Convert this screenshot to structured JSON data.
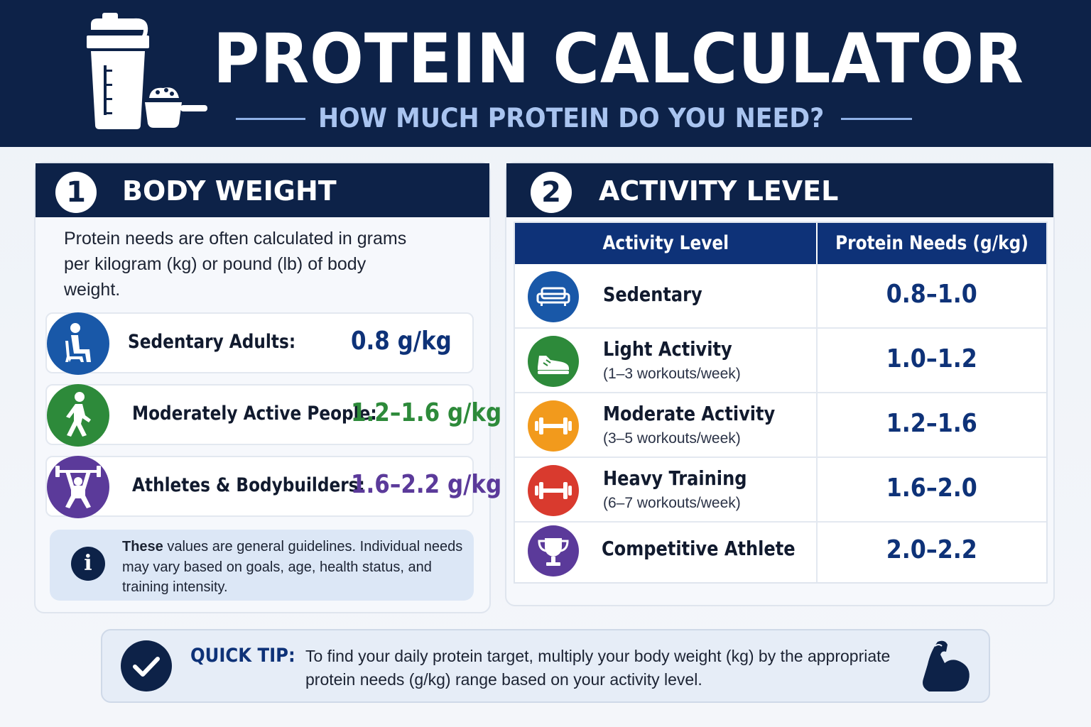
{
  "header": {
    "title": "PROTEIN CALCULATOR",
    "subtitle": "HOW MUCH PROTEIN DO YOU NEED?",
    "logo_icon": "protein-shaker-and-scoop-icon"
  },
  "body_weight": {
    "number": "1",
    "title": "BODY WEIGHT",
    "intro": "Protein needs are often calculated in grams per kilogram (kg) or pound (lb) of body weight.",
    "rows": [
      {
        "label": "Sedentary Adults:",
        "value": "0.8 g/kg",
        "icon": "sitting-person-icon",
        "color": "#1958a8",
        "value_color": "#0e3278"
      },
      {
        "label": "Moderately Active People:",
        "value": "1.2–1.6 g/kg",
        "icon": "walking-person-icon",
        "color": "#2d8a3a",
        "value_color": "#2d8a3a"
      },
      {
        "label": "Athletes & Bodybuilders:",
        "value": "1.6–2.2 g/kg",
        "icon": "weightlifter-icon",
        "color": "#5b3a9a",
        "value_color": "#5b3a9a"
      }
    ],
    "note_bold": "These",
    "note_text": " values are general guidelines. Individual needs may vary based on goals, age, health status, and training intensity."
  },
  "activity_level": {
    "number": "2",
    "title": "ACTIVITY LEVEL",
    "columns": [
      "Activity Level",
      "Protein Needs (g/kg)"
    ],
    "rows": [
      {
        "name": "Sedentary",
        "sub": "",
        "value": "0.8–1.0",
        "icon": "couch-icon",
        "color": "#1958a8"
      },
      {
        "name": "Light Activity",
        "sub": "(1–3 workouts/week)",
        "value": "1.0–1.2",
        "icon": "sneaker-icon",
        "color": "#2d8a3a"
      },
      {
        "name": "Moderate Activity",
        "sub": "(3–5 workouts/week)",
        "value": "1.2–1.6",
        "icon": "dumbbell-icon",
        "color": "#f29a1c"
      },
      {
        "name": "Heavy Training",
        "sub": "(6–7 workouts/week)",
        "value": "1.6–2.0",
        "icon": "dumbbell-icon",
        "color": "#d93a2e"
      },
      {
        "name": "Competitive Athlete",
        "sub": "",
        "value": "2.0–2.2",
        "icon": "trophy-icon",
        "color": "#5b3a9a"
      }
    ]
  },
  "tip": {
    "label": "QUICK TIP:",
    "text": "To find your daily protein target, multiply your body weight (kg) by the appropriate protein needs (g/kg) range based on your activity level.",
    "check_icon": "checkmark-icon",
    "muscle_icon": "flexed-bicep-icon"
  },
  "colors": {
    "navy": "#0d2248",
    "table_header": "#0e3278",
    "accent_light": "#a9c4f0"
  }
}
